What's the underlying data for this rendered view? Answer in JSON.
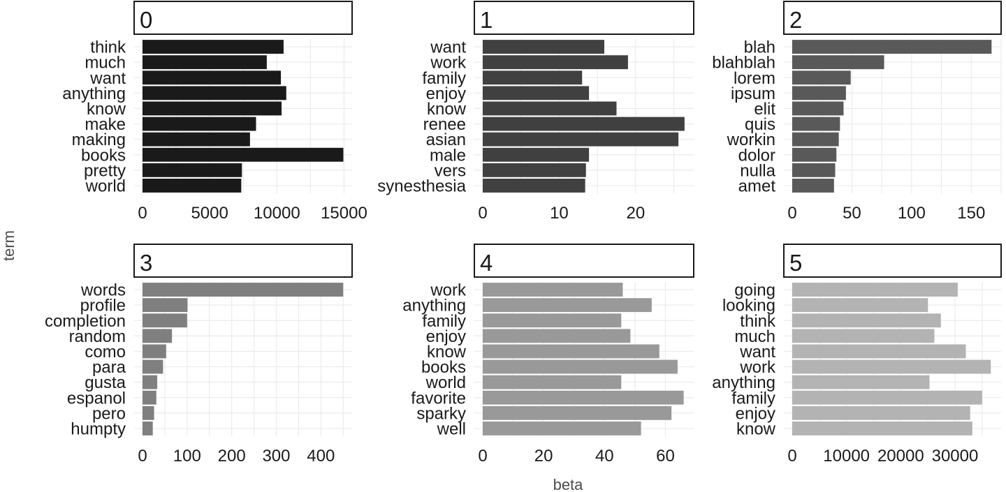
{
  "chart_data": {
    "type": "bar",
    "orientation": "horizontal",
    "xlabel": "beta",
    "ylabel": "term",
    "grid": true,
    "panels": [
      {
        "label": "0",
        "color": "#1a1a1a",
        "categories": [
          "think",
          "much",
          "want",
          "anything",
          "know",
          "make",
          "making",
          "books",
          "pretty",
          "world"
        ],
        "values": [
          10500,
          9250,
          10300,
          10700,
          10350,
          8450,
          8000,
          14950,
          7400,
          7350
        ],
        "xlim": [
          0,
          15600
        ],
        "ticks": [
          0,
          5000,
          10000,
          15000
        ],
        "tick_labels": [
          "0",
          "5000",
          "10000",
          "15000"
        ]
      },
      {
        "label": "1",
        "color": "#404040",
        "categories": [
          "want",
          "work",
          "family",
          "enjoy",
          "know",
          "renee",
          "asian",
          "male",
          "vers",
          "synesthesia"
        ],
        "values": [
          15.9,
          19.0,
          13.0,
          13.9,
          17.5,
          26.4,
          25.6,
          13.9,
          13.5,
          13.4
        ],
        "xlim": [
          0,
          27.6
        ],
        "ticks": [
          0,
          10,
          20
        ],
        "tick_labels": [
          "0",
          "10",
          "20"
        ]
      },
      {
        "label": "2",
        "color": "#595959",
        "categories": [
          "blah",
          "blahblah",
          "lorem",
          "ipsum",
          "elit",
          "quis",
          "workin",
          "dolor",
          "nulla",
          "amet"
        ],
        "values": [
          167,
          77,
          49,
          45,
          43,
          40,
          39,
          37,
          36,
          35
        ],
        "xlim": [
          0,
          175
        ],
        "ticks": [
          0,
          50,
          100,
          150
        ],
        "tick_labels": [
          "0",
          "50",
          "100",
          "150"
        ]
      },
      {
        "label": "3",
        "color": "#7f7f7f",
        "categories": [
          "words",
          "profile",
          "completion",
          "random",
          "como",
          "para",
          "gusta",
          "espanol",
          "pero",
          "humpty"
        ],
        "values": [
          450,
          101,
          100,
          66,
          53,
          46,
          33,
          31,
          26,
          23
        ],
        "xlim": [
          0,
          470
        ],
        "ticks": [
          0,
          100,
          200,
          300,
          400
        ],
        "tick_labels": [
          "0",
          "100",
          "200",
          "300",
          "400"
        ]
      },
      {
        "label": "4",
        "color": "#999999",
        "categories": [
          "work",
          "anything",
          "family",
          "enjoy",
          "know",
          "books",
          "world",
          "favorite",
          "sparky",
          "well"
        ],
        "values": [
          46,
          55.5,
          45.5,
          48.5,
          58,
          64,
          45.5,
          66,
          62,
          52
        ],
        "xlim": [
          0,
          69.3
        ],
        "ticks": [
          0,
          20,
          40,
          60
        ],
        "tick_labels": [
          "0",
          "20",
          "40",
          "60"
        ]
      },
      {
        "label": "5",
        "color": "#b3b3b3",
        "categories": [
          "going",
          "looking",
          "think",
          "much",
          "want",
          "work",
          "anything",
          "family",
          "enjoy",
          "know"
        ],
        "values": [
          30500,
          25000,
          27400,
          26200,
          32000,
          36600,
          25300,
          35000,
          32800,
          33200
        ],
        "xlim": [
          0,
          38500
        ],
        "ticks": [
          0,
          10000,
          20000,
          30000
        ],
        "tick_labels": [
          "0",
          "10000",
          "20000",
          "30000"
        ]
      }
    ]
  }
}
